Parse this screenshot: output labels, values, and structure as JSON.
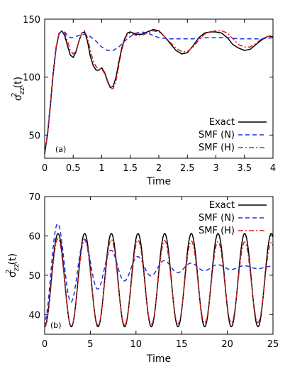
{
  "chart_data": [
    {
      "type": "line",
      "panel_label": "(a)",
      "xlabel": "Time",
      "ylabel_base": "σ",
      "ylabel_sup": "2",
      "ylabel_sub": "zz",
      "ylabel_tail": "(t)",
      "xlim": [
        0,
        4
      ],
      "ylim": [
        30,
        150
      ],
      "xticks": [
        0,
        0.5,
        1,
        1.5,
        2,
        2.5,
        3,
        3.5,
        4
      ],
      "xtick_labels": [
        "0",
        "0.5",
        "1",
        "1.5",
        "2",
        "2.5",
        "3",
        "3.5",
        "4"
      ],
      "yticks": [
        50,
        100,
        150
      ],
      "ytick_labels": [
        "50",
        "100",
        "150"
      ],
      "legend_position": "bottom-right",
      "grid": false,
      "series": [
        {
          "name": "Exact",
          "color": "#000000",
          "dash": "solid",
          "x": [
            0,
            0.05,
            0.1,
            0.15,
            0.2,
            0.25,
            0.3,
            0.35,
            0.4,
            0.45,
            0.5,
            0.55,
            0.6,
            0.65,
            0.7,
            0.75,
            0.8,
            0.85,
            0.9,
            0.95,
            1.0,
            1.05,
            1.1,
            1.15,
            1.2,
            1.25,
            1.3,
            1.35,
            1.4,
            1.45,
            1.5,
            1.6,
            1.7,
            1.8,
            1.9,
            2.0,
            2.1,
            2.2,
            2.3,
            2.4,
            2.5,
            2.6,
            2.7,
            2.8,
            2.9,
            3.0,
            3.1,
            3.2,
            3.3,
            3.4,
            3.5,
            3.6,
            3.7,
            3.8,
            3.9,
            4.0
          ],
          "y": [
            34,
            50,
            75,
            103,
            125,
            137,
            140,
            136,
            127,
            119,
            117,
            122,
            131,
            138,
            139,
            131,
            118,
            110,
            106,
            106,
            108,
            104,
            97,
            91,
            92,
            100,
            113,
            125,
            133,
            138,
            139,
            137,
            137,
            139,
            141,
            140,
            135,
            129,
            123,
            120,
            121,
            127,
            134,
            138,
            139,
            139,
            138,
            134,
            128,
            125,
            123,
            124,
            128,
            132,
            135,
            135
          ]
        },
        {
          "name": "SMF (N)",
          "color": "#1f2fe0",
          "dash": "6,4",
          "x": [
            0,
            0.05,
            0.1,
            0.15,
            0.2,
            0.25,
            0.3,
            0.35,
            0.4,
            0.45,
            0.5,
            0.6,
            0.7,
            0.8,
            0.9,
            1.0,
            1.1,
            1.2,
            1.3,
            1.4,
            1.5,
            1.6,
            1.7,
            1.8,
            1.9,
            2.0,
            2.2,
            2.4,
            2.6,
            2.8,
            3.0,
            3.2,
            3.4,
            3.6,
            3.8,
            4.0
          ],
          "y": [
            34,
            52,
            78,
            106,
            126,
            137,
            140,
            139,
            136,
            134,
            134,
            136,
            137,
            135,
            131,
            126,
            123,
            123,
            126,
            131,
            135,
            138,
            139,
            138,
            136,
            134,
            133,
            133,
            133,
            134,
            134,
            134,
            133,
            133,
            133,
            134
          ]
        },
        {
          "name": "SMF (H)",
          "color": "#d42020",
          "dash": "7,3,2,3",
          "x": [
            0,
            0.05,
            0.1,
            0.15,
            0.2,
            0.25,
            0.3,
            0.35,
            0.4,
            0.45,
            0.5,
            0.55,
            0.6,
            0.65,
            0.7,
            0.75,
            0.8,
            0.85,
            0.9,
            0.95,
            1.0,
            1.05,
            1.1,
            1.15,
            1.2,
            1.25,
            1.3,
            1.35,
            1.4,
            1.45,
            1.5,
            1.6,
            1.7,
            1.8,
            1.9,
            2.0,
            2.1,
            2.2,
            2.3,
            2.4,
            2.5,
            2.6,
            2.7,
            2.8,
            2.9,
            3.0,
            3.1,
            3.2,
            3.3,
            3.4,
            3.5,
            3.6,
            3.7,
            3.8,
            3.9,
            4.0
          ],
          "y": [
            34,
            50,
            76,
            104,
            126,
            138,
            140,
            138,
            131,
            123,
            120,
            123,
            131,
            138,
            140,
            134,
            123,
            114,
            109,
            107,
            107,
            103,
            96,
            90,
            90,
            97,
            110,
            123,
            132,
            137,
            138,
            136,
            136,
            138,
            140,
            139,
            135,
            130,
            125,
            122,
            122,
            126,
            132,
            137,
            139,
            140,
            140,
            138,
            133,
            128,
            126,
            126,
            129,
            133,
            135,
            136
          ]
        }
      ]
    },
    {
      "type": "line",
      "panel_label": "(b)",
      "xlabel": "Time",
      "ylabel_base": "σ",
      "ylabel_sup": "2",
      "ylabel_sub": "zz",
      "ylabel_tail": "(t)",
      "xlim": [
        0,
        25
      ],
      "ylim": [
        35,
        70
      ],
      "xticks": [
        0,
        5,
        10,
        15,
        20,
        25
      ],
      "xtick_labels": [
        "0",
        "5",
        "10",
        "15",
        "20",
        "25"
      ],
      "yticks": [
        40,
        50,
        60,
        70
      ],
      "ytick_labels": [
        "40",
        "50",
        "60",
        "70"
      ],
      "legend_position": "top-right",
      "grid": false,
      "series": [
        {
          "name": "Exact",
          "color": "#000000",
          "dash": "solid",
          "osc": {
            "mean": 48.75,
            "amp": 11.85,
            "period": 2.92,
            "damp": 0,
            "start": 36.9,
            "n": 500
          }
        },
        {
          "name": "SMF (N)",
          "color": "#1f2fe0",
          "dash": "6,4",
          "osc": {
            "mean": 52.0,
            "amp": 14.0,
            "period": 2.92,
            "damp": 0.16,
            "start": 36.9,
            "n": 500
          }
        },
        {
          "name": "SMF (H)",
          "color": "#d42020",
          "dash": "7,3,2,3",
          "osc": {
            "mean": 48.2,
            "amp": 11.2,
            "period": 2.92,
            "damp": 0.004,
            "start": 36.9,
            "n": 500
          }
        }
      ]
    }
  ]
}
